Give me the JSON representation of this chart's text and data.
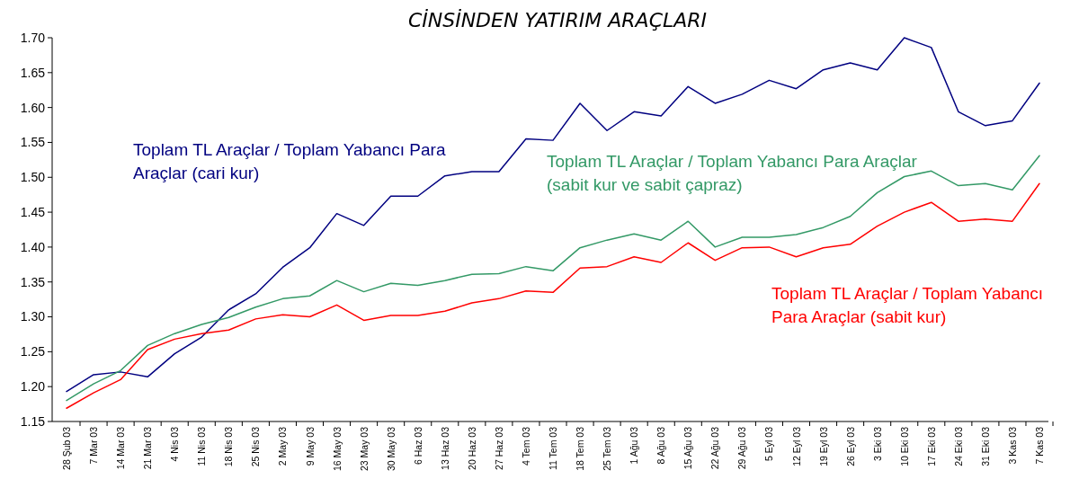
{
  "chart_data": {
    "type": "line",
    "title": "CİNSİNDEN YATIRIM ARAÇLARI",
    "categories": [
      "28 Şub 03",
      "7 Mar 03",
      "14 Mar 03",
      "21 Mar 03",
      "4 Nis 03",
      "11 Nis 03",
      "18 Nis 03",
      "25 Nis 03",
      "2 May 03",
      "9 May 03",
      "16 May 03",
      "23 May 03",
      "30 May 03",
      "6 Haz 03",
      "13 Haz 03",
      "20 Haz 03",
      "27 Haz 03",
      "4 Tem 03",
      "11 Tem 03",
      "18 Tem 03",
      "25 Tem 03",
      "1 Ağu 03",
      "8 Ağu 03",
      "15 Ağu 03",
      "22 Ağu 03",
      "29 Ağu 03",
      "5 Eyl 03",
      "12 Eyl 03",
      "19 Eyl 03",
      "26 Eyl 03",
      "3 Eki 03",
      "10 Eki 03",
      "17 Eki 03",
      "24 Eki 03",
      "31 Eki 03",
      "3 Kas 03",
      "7 Kas 03"
    ],
    "series": [
      {
        "name": "Toplam TL Araçlar / Toplam Yabancı Para Araçlar (cari kur)",
        "color": "#000080",
        "values": [
          1.193,
          1.217,
          1.221,
          1.214,
          1.247,
          1.271,
          1.31,
          1.333,
          1.371,
          1.399,
          1.448,
          1.431,
          1.473,
          1.473,
          1.502,
          1.508,
          1.508,
          1.555,
          1.553,
          1.606,
          1.567,
          1.594,
          1.588,
          1.63,
          1.606,
          1.619,
          1.639,
          1.627,
          1.654,
          1.664,
          1.654,
          1.7,
          1.686,
          1.594,
          1.574,
          1.581,
          1.635
        ]
      },
      {
        "name": "Toplam TL Araçlar / Toplam Yabancı Para Araçlar (sabit kur ve sabit çapraz)",
        "color": "#339966",
        "values": [
          1.18,
          1.204,
          1.223,
          1.259,
          1.276,
          1.289,
          1.299,
          1.314,
          1.326,
          1.33,
          1.352,
          1.336,
          1.348,
          1.345,
          1.352,
          1.361,
          1.362,
          1.372,
          1.366,
          1.399,
          1.41,
          1.419,
          1.41,
          1.437,
          1.4,
          1.414,
          1.414,
          1.418,
          1.428,
          1.444,
          1.478,
          1.501,
          1.509,
          1.488,
          1.491,
          1.482,
          1.531
        ]
      },
      {
        "name": "Toplam TL Araçlar / Toplam Yabancı Para Araçlar (sabit kur)",
        "color": "#ff0000",
        "values": [
          1.169,
          1.191,
          1.21,
          1.253,
          1.268,
          1.276,
          1.281,
          1.297,
          1.303,
          1.3,
          1.317,
          1.295,
          1.302,
          1.302,
          1.308,
          1.32,
          1.326,
          1.337,
          1.335,
          1.37,
          1.372,
          1.386,
          1.378,
          1.406,
          1.381,
          1.399,
          1.4,
          1.386,
          1.399,
          1.404,
          1.43,
          1.45,
          1.464,
          1.437,
          1.44,
          1.437,
          1.491
        ]
      }
    ],
    "ylim": [
      1.15,
      1.7
    ],
    "yticks": [
      {
        "value": 1.15,
        "label": "1.15"
      },
      {
        "value": 1.2,
        "label": "1.20"
      },
      {
        "value": 1.25,
        "label": "1.25"
      },
      {
        "value": 1.3,
        "label": "1.30"
      },
      {
        "value": 1.35,
        "label": "1.35"
      },
      {
        "value": 1.4,
        "label": "1.40"
      },
      {
        "value": 1.45,
        "label": "1.45"
      },
      {
        "value": 1.5,
        "label": "1.50"
      },
      {
        "value": 1.55,
        "label": "1.55"
      },
      {
        "value": 1.6,
        "label": "1.60"
      },
      {
        "value": 1.65,
        "label": "1.65"
      },
      {
        "value": 1.7,
        "label": "1.70"
      }
    ],
    "legend": false,
    "grid": false,
    "marker": "none",
    "line_style": "solid"
  }
}
